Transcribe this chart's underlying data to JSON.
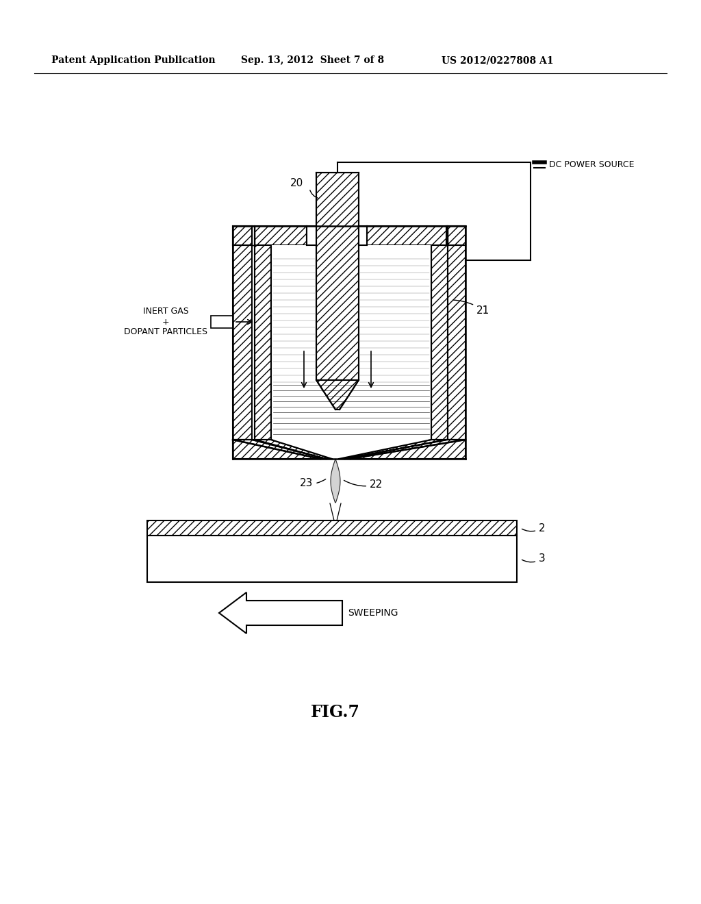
{
  "bg_color": "#ffffff",
  "header_left": "Patent Application Publication",
  "header_mid": "Sep. 13, 2012  Sheet 7 of 8",
  "header_right": "US 2012/0227808 A1",
  "fig_label": "FIG.7",
  "sweep_label": "SWEEPING",
  "label_20": "20",
  "label_21": "21",
  "label_22": "22",
  "label_23": "23",
  "label_2": "2",
  "label_3": "3",
  "label_inert": "INERT GAS\n+\nDOPANT PARTICLES",
  "label_dc": "DC POWER SOURCE"
}
